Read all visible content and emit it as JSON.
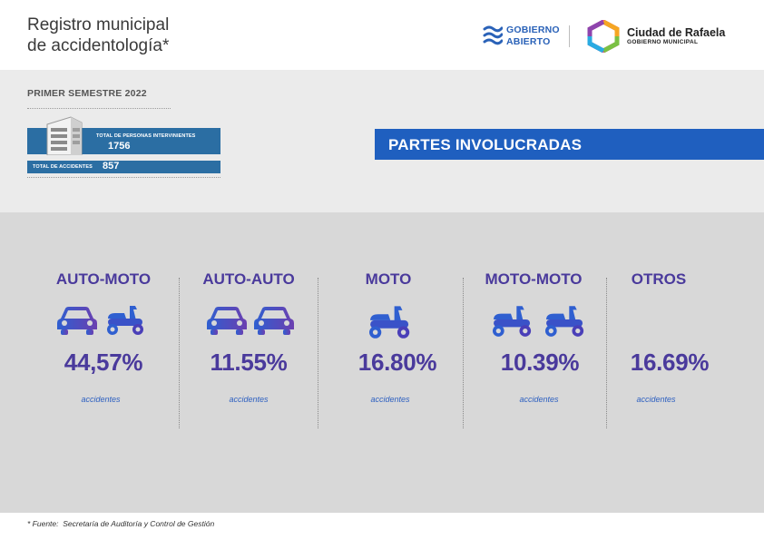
{
  "header": {
    "title_line1": "Registro municipal",
    "title_line2": "de accidentología*",
    "gobierno_line1": "GOBIERNO",
    "gobierno_line2": "ABIERTO",
    "city_name": "Ciudad de Rafaela",
    "city_sub": "GOBIERNO MUNICIPAL"
  },
  "summary": {
    "semester": "PRIMER SEMESTRE 2022",
    "personas_label": "TOTAL DE PERSONAS INTERVINIENTES",
    "personas_value": "1756",
    "accidentes_label": "TOTAL DE ACCIDENTES",
    "accidentes_value": "857",
    "banner": "PARTES INVOLUCRADAS"
  },
  "categories": [
    {
      "title": "AUTO-MOTO",
      "pct": "44,57%",
      "note": "accidentes",
      "icons": [
        "car-icon",
        "scooter-icon"
      ]
    },
    {
      "title": "AUTO-AUTO",
      "pct": "11.55%",
      "note": "accidentes",
      "icons": [
        "car-icon",
        "car-icon"
      ]
    },
    {
      "title": "MOTO",
      "pct": "16.80%",
      "note": "accidentes",
      "icons": [
        "scooter-icon"
      ]
    },
    {
      "title": "MOTO-MOTO",
      "pct": "10.39%",
      "note": "accidentes",
      "icons": [
        "scooter-icon",
        "scooter-icon"
      ]
    },
    {
      "title": "OTROS",
      "pct": "16.69%",
      "note": "accidentes",
      "icons": []
    }
  ],
  "footer": {
    "prefix": "* Fuente:",
    "source": "Secretaría de Auditoría y Control de Gestión"
  },
  "colors": {
    "accent_purple": "#4a3a9c",
    "accent_blue": "#1f5fbf",
    "stat_blue": "#2b6ea3"
  }
}
